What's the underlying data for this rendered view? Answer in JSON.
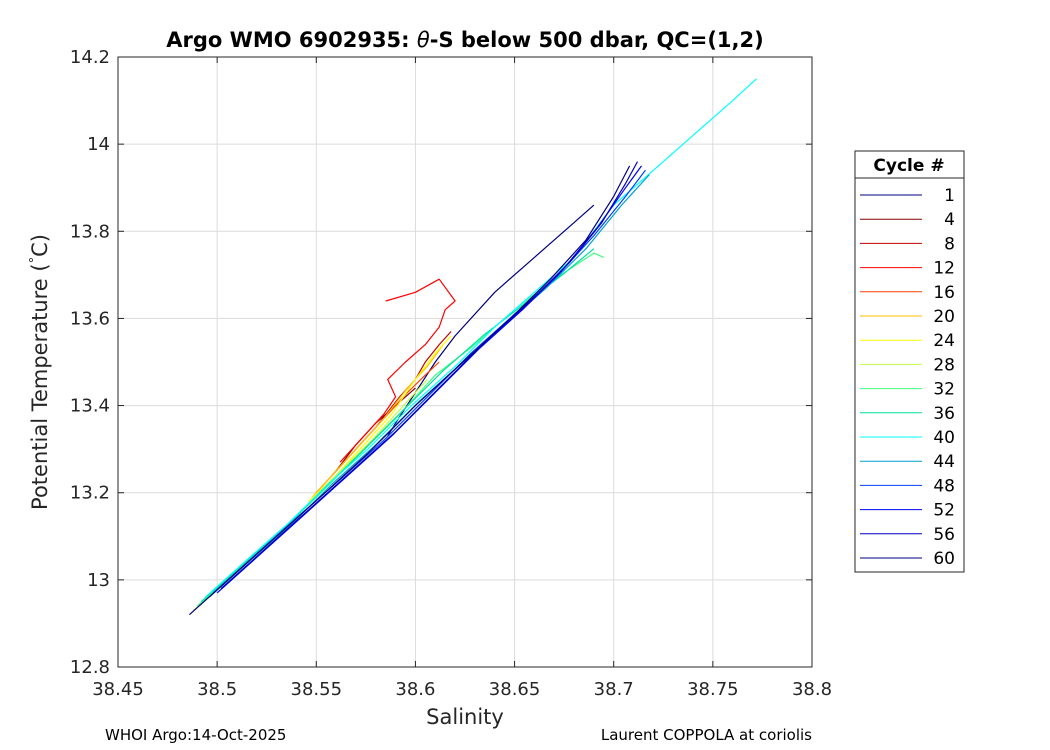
{
  "chart_data": {
    "type": "line",
    "title": "Argo WMO 6902935: θ-S below 500 dbar,  QC=(1,2)",
    "title_parts": {
      "prefix": "Argo WMO 6902935: ",
      "theta": "θ",
      "suffix": "-S below 500 dbar,  QC=(1,2)"
    },
    "xlabel": "Salinity",
    "ylabel": "Potential Temperature (°C)",
    "ylabel_parts": {
      "main": "Potential Temperature (",
      "degree": "°",
      "unit": "C)"
    },
    "xlim": [
      38.45,
      38.8
    ],
    "ylim": [
      12.8,
      14.2
    ],
    "x_ticks": [
      "38.45",
      "38.5",
      "38.55",
      "38.6",
      "38.65",
      "38.7",
      "38.75",
      "38.8"
    ],
    "y_ticks": [
      "12.8",
      "13",
      "13.2",
      "13.4",
      "13.6",
      "13.8",
      "14",
      "14.2"
    ],
    "grid": true,
    "legend_title": "Cycle #",
    "legend_position": "right",
    "series": [
      {
        "name": "1",
        "color": "#000080",
        "points": [
          [
            38.586,
            13.33
          ],
          [
            38.59,
            13.36
          ],
          [
            38.6,
            13.43
          ],
          [
            38.61,
            13.5
          ],
          [
            38.62,
            13.56
          ],
          [
            38.64,
            13.66
          ],
          [
            38.66,
            13.74
          ],
          [
            38.68,
            13.82
          ],
          [
            38.69,
            13.86
          ]
        ]
      },
      {
        "name": "4",
        "color": "#800000",
        "points": [
          [
            38.56,
            13.25
          ],
          [
            38.57,
            13.31
          ],
          [
            38.58,
            13.36
          ],
          [
            38.59,
            13.4
          ],
          [
            38.6,
            13.44
          ]
        ]
      },
      {
        "name": "8",
        "color": "#bf0000",
        "points": [
          [
            38.558,
            13.24
          ],
          [
            38.57,
            13.3
          ],
          [
            38.58,
            13.35
          ],
          [
            38.592,
            13.42
          ],
          [
            38.6,
            13.46
          ],
          [
            38.605,
            13.5
          ],
          [
            38.612,
            13.54
          ],
          [
            38.618,
            13.57
          ]
        ]
      },
      {
        "name": "12",
        "color": "#ff0000",
        "points": [
          [
            38.562,
            13.27
          ],
          [
            38.574,
            13.33
          ],
          [
            38.584,
            13.38
          ],
          [
            38.59,
            13.42
          ],
          [
            38.586,
            13.46
          ],
          [
            38.595,
            13.5
          ],
          [
            38.605,
            13.54
          ],
          [
            38.612,
            13.58
          ],
          [
            38.615,
            13.62
          ],
          [
            38.62,
            13.64
          ],
          [
            38.612,
            13.69
          ],
          [
            38.6,
            13.66
          ],
          [
            38.585,
            13.64
          ]
        ]
      },
      {
        "name": "16",
        "color": "#ff4000",
        "points": [
          [
            38.55,
            13.2
          ],
          [
            38.562,
            13.26
          ],
          [
            38.574,
            13.32
          ],
          [
            38.586,
            13.38
          ],
          [
            38.596,
            13.43
          ],
          [
            38.605,
            13.47
          ],
          [
            38.612,
            13.5
          ]
        ]
      },
      {
        "name": "20",
        "color": "#ffbf00",
        "points": [
          [
            38.548,
            13.19
          ],
          [
            38.56,
            13.25
          ],
          [
            38.572,
            13.31
          ],
          [
            38.584,
            13.37
          ],
          [
            38.596,
            13.44
          ],
          [
            38.606,
            13.49
          ],
          [
            38.614,
            13.54
          ]
        ]
      },
      {
        "name": "24",
        "color": "#ffff00",
        "points": [
          [
            38.546,
            13.18
          ],
          [
            38.56,
            13.24
          ],
          [
            38.574,
            13.31
          ],
          [
            38.588,
            13.38
          ],
          [
            38.6,
            13.46
          ],
          [
            38.61,
            13.52
          ],
          [
            38.618,
            13.56
          ]
        ]
      },
      {
        "name": "28",
        "color": "#bfff40",
        "points": [
          [
            38.488,
            12.93
          ],
          [
            38.51,
            13.02
          ],
          [
            38.53,
            13.1
          ],
          [
            38.545,
            13.17
          ],
          [
            38.56,
            13.24
          ],
          [
            38.578,
            13.32
          ],
          [
            38.594,
            13.4
          ],
          [
            38.606,
            13.46
          ]
        ]
      },
      {
        "name": "32",
        "color": "#40ff80",
        "points": [
          [
            38.49,
            12.94
          ],
          [
            38.512,
            13.03
          ],
          [
            38.532,
            13.11
          ],
          [
            38.55,
            13.19
          ],
          [
            38.57,
            13.28
          ],
          [
            38.59,
            13.37
          ],
          [
            38.61,
            13.47
          ],
          [
            38.63,
            13.54
          ],
          [
            38.65,
            13.62
          ],
          [
            38.67,
            13.69
          ],
          [
            38.69,
            13.75
          ],
          [
            38.695,
            13.74
          ]
        ]
      },
      {
        "name": "36",
        "color": "#00e0a0",
        "points": [
          [
            38.492,
            12.95
          ],
          [
            38.514,
            13.04
          ],
          [
            38.534,
            13.12
          ],
          [
            38.552,
            13.2
          ],
          [
            38.572,
            13.29
          ],
          [
            38.594,
            13.39
          ],
          [
            38.614,
            13.48
          ],
          [
            38.634,
            13.56
          ],
          [
            38.654,
            13.63
          ],
          [
            38.674,
            13.7
          ],
          [
            38.69,
            13.76
          ]
        ]
      },
      {
        "name": "40",
        "color": "#00ffff",
        "points": [
          [
            38.494,
            12.96
          ],
          [
            38.516,
            13.05
          ],
          [
            38.536,
            13.13
          ],
          [
            38.556,
            13.22
          ],
          [
            38.576,
            13.3
          ],
          [
            38.598,
            13.4
          ],
          [
            38.62,
            13.49
          ],
          [
            38.64,
            13.58
          ],
          [
            38.66,
            13.66
          ],
          [
            38.68,
            13.74
          ],
          [
            38.7,
            13.86
          ],
          [
            38.72,
            13.94
          ],
          [
            38.74,
            14.02
          ],
          [
            38.76,
            14.1
          ],
          [
            38.772,
            14.15
          ]
        ]
      },
      {
        "name": "44",
        "color": "#00a0d0",
        "points": [
          [
            38.496,
            12.96
          ],
          [
            38.518,
            13.05
          ],
          [
            38.538,
            13.13
          ],
          [
            38.558,
            13.22
          ],
          [
            38.58,
            13.31
          ],
          [
            38.602,
            13.41
          ],
          [
            38.624,
            13.5
          ],
          [
            38.646,
            13.59
          ],
          [
            38.666,
            13.67
          ],
          [
            38.686,
            13.76
          ],
          [
            38.704,
            13.86
          ],
          [
            38.718,
            13.93
          ]
        ]
      },
      {
        "name": "48",
        "color": "#0040ff",
        "points": [
          [
            38.498,
            12.97
          ],
          [
            38.52,
            13.06
          ],
          [
            38.542,
            13.15
          ],
          [
            38.562,
            13.23
          ],
          [
            38.584,
            13.32
          ],
          [
            38.606,
            13.42
          ],
          [
            38.628,
            13.52
          ],
          [
            38.65,
            13.61
          ],
          [
            38.67,
            13.69
          ],
          [
            38.69,
            13.79
          ],
          [
            38.706,
            13.88
          ],
          [
            38.716,
            13.94
          ]
        ]
      },
      {
        "name": "52",
        "color": "#0000ff",
        "points": [
          [
            38.5,
            12.97
          ],
          [
            38.522,
            13.06
          ],
          [
            38.544,
            13.15
          ],
          [
            38.566,
            13.24
          ],
          [
            38.588,
            13.33
          ],
          [
            38.61,
            13.43
          ],
          [
            38.632,
            13.53
          ],
          [
            38.654,
            13.62
          ],
          [
            38.674,
            13.71
          ],
          [
            38.692,
            13.81
          ],
          [
            38.706,
            13.9
          ],
          [
            38.714,
            13.95
          ]
        ]
      },
      {
        "name": "56",
        "color": "#0000bf",
        "points": [
          [
            38.502,
            12.98
          ],
          [
            38.524,
            13.07
          ],
          [
            38.546,
            13.16
          ],
          [
            38.568,
            13.25
          ],
          [
            38.59,
            13.34
          ],
          [
            38.614,
            13.45
          ],
          [
            38.636,
            13.55
          ],
          [
            38.658,
            13.64
          ],
          [
            38.678,
            13.73
          ],
          [
            38.694,
            13.82
          ],
          [
            38.706,
            13.91
          ],
          [
            38.712,
            13.96
          ]
        ]
      },
      {
        "name": "60",
        "color": "#000080",
        "points": [
          [
            38.486,
            12.92
          ],
          [
            38.508,
            13.01
          ],
          [
            38.53,
            13.1
          ],
          [
            38.552,
            13.19
          ],
          [
            38.576,
            13.29
          ],
          [
            38.6,
            13.4
          ],
          [
            38.624,
            13.5
          ],
          [
            38.648,
            13.6
          ],
          [
            38.668,
            13.69
          ],
          [
            38.686,
            13.78
          ],
          [
            38.7,
            13.88
          ],
          [
            38.708,
            13.95
          ]
        ]
      }
    ]
  },
  "footer": {
    "left": "WHOI Argo:14-Oct-2025",
    "right": "Laurent COPPOLA at coriolis"
  }
}
